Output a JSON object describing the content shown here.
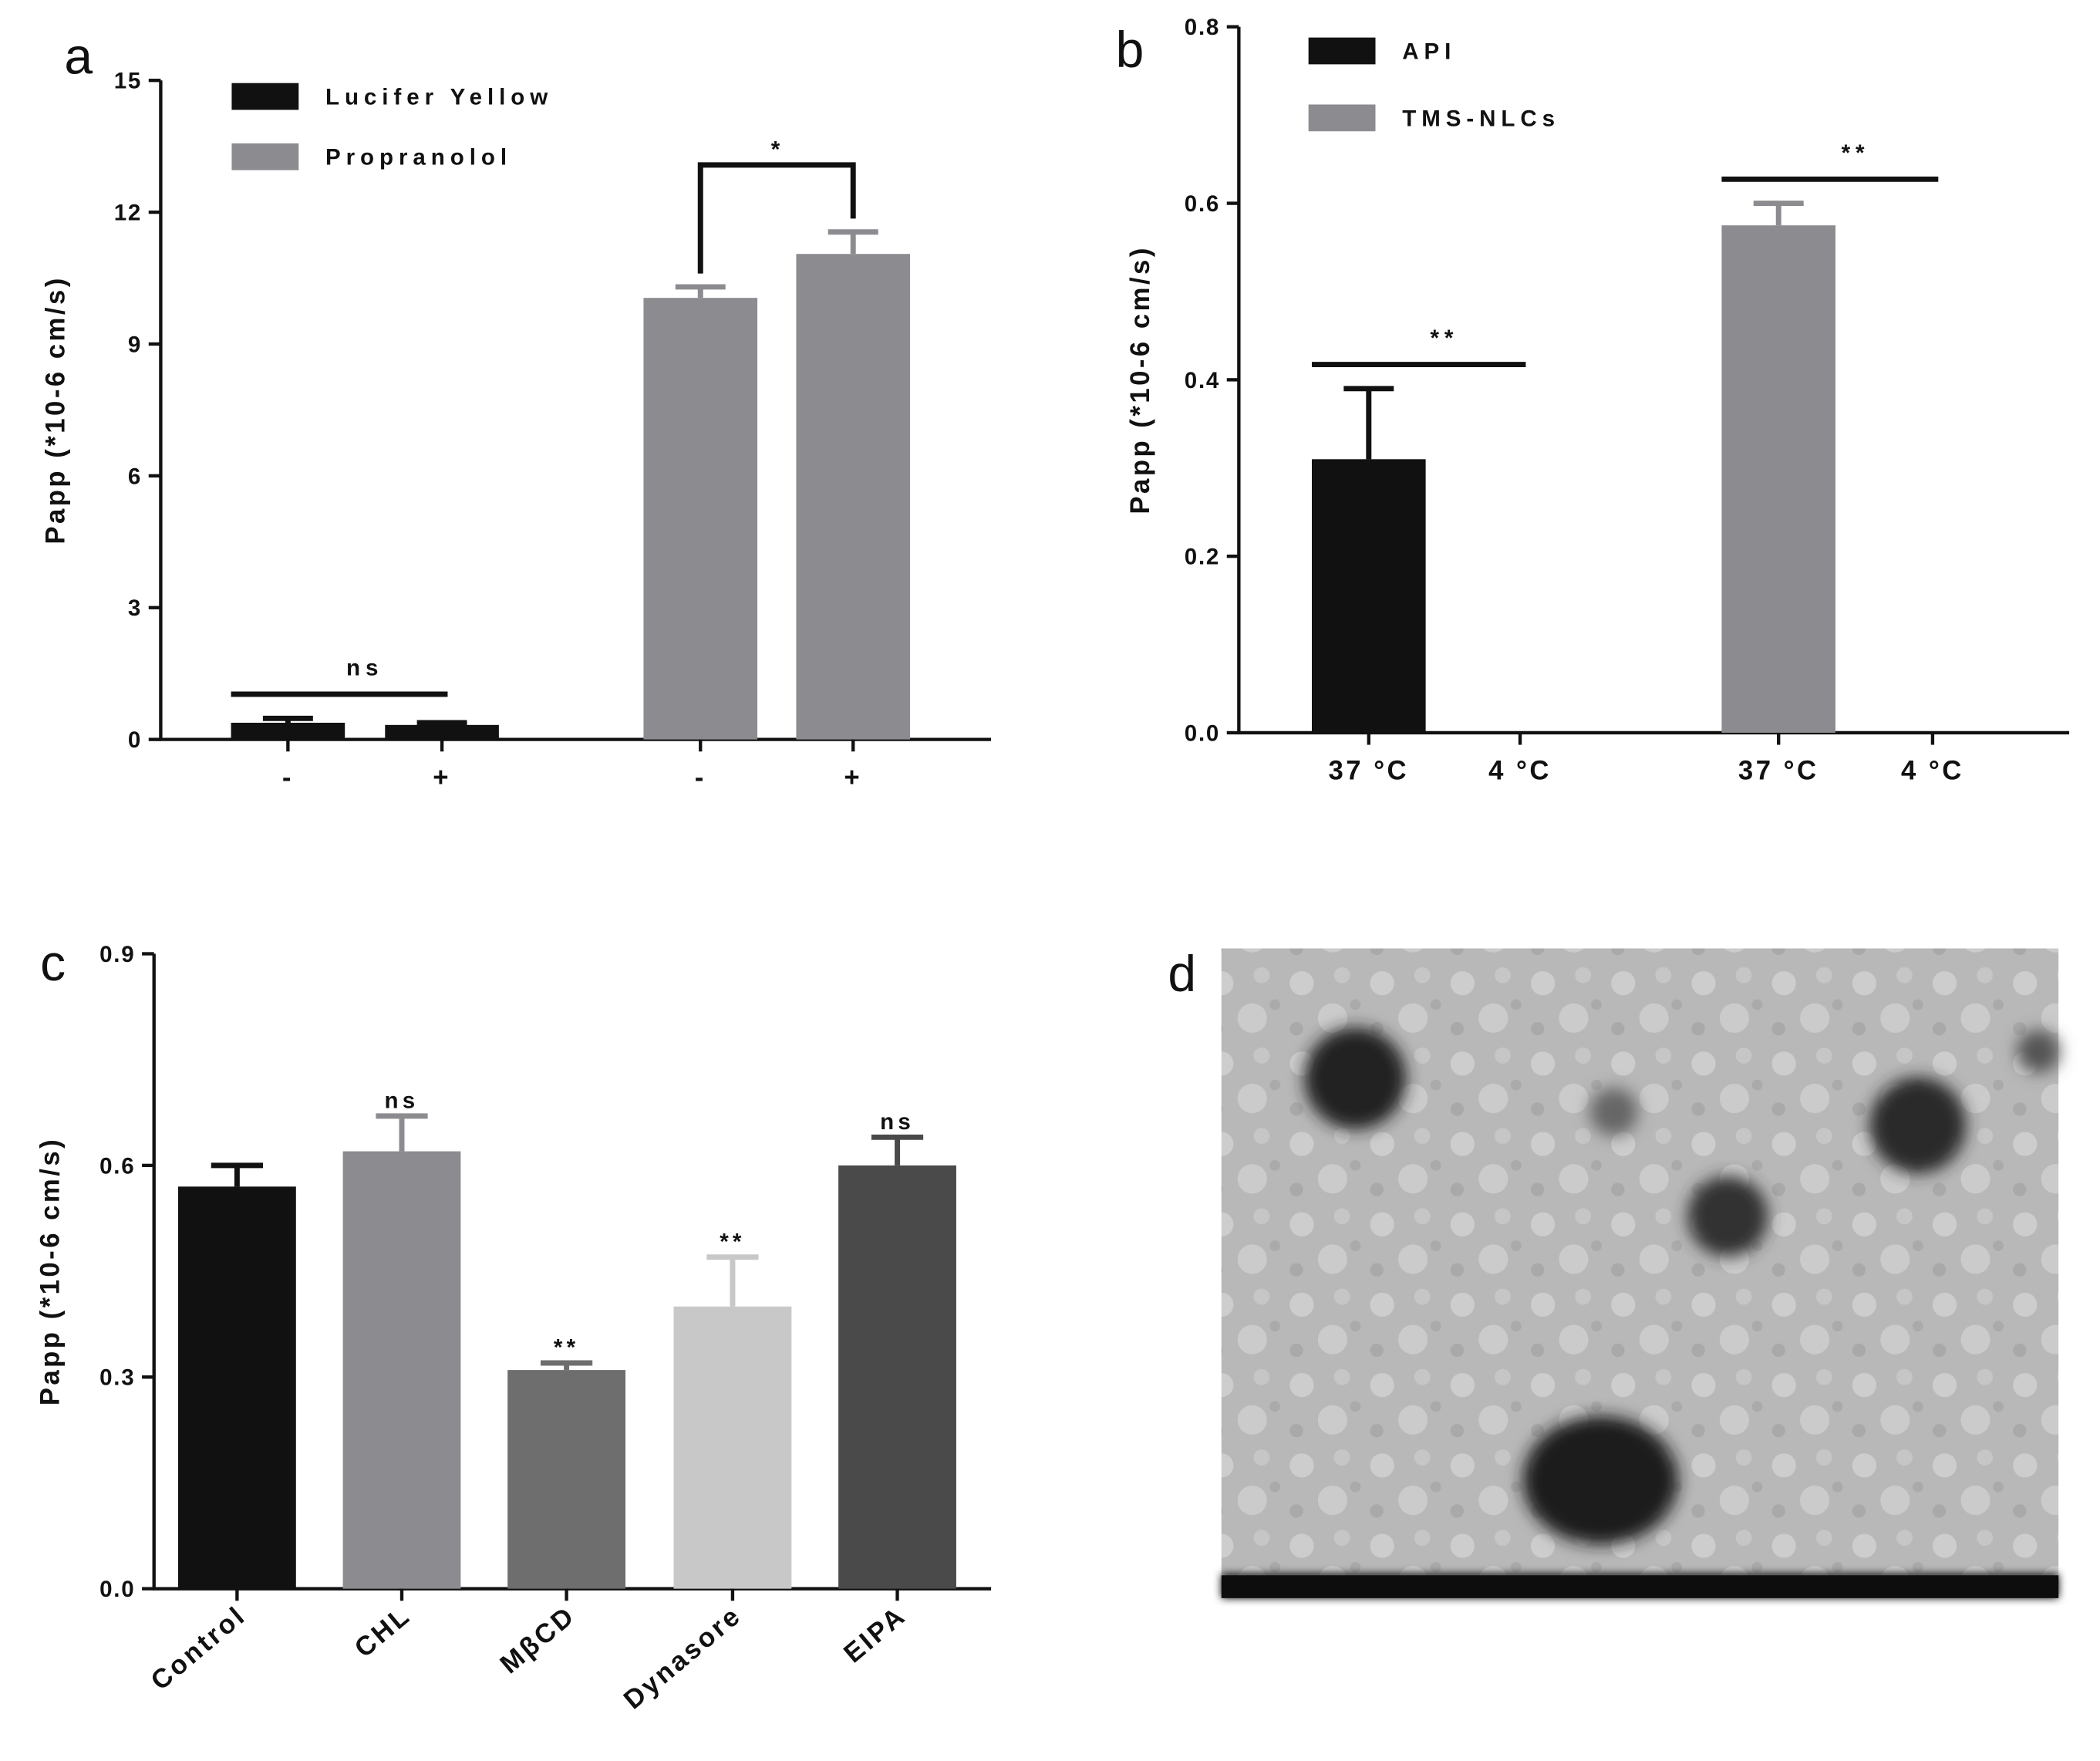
{
  "chart_data": [
    {
      "type": "bar",
      "label": "a",
      "ylabel": "Papp (*10-6 cm/s)",
      "categories": [
        "-",
        "+",
        "-",
        "+"
      ],
      "series": [
        {
          "name": "Lucifer Yellow",
          "color": "#111111",
          "values": [
            0.38,
            0.33,
            null,
            null
          ],
          "errors": [
            0.1,
            0.05,
            null,
            null
          ]
        },
        {
          "name": "Propranolol",
          "color": "#8c8c90",
          "values": [
            null,
            null,
            10.05,
            11.05
          ],
          "errors": [
            null,
            null,
            0.25,
            0.5
          ]
        }
      ],
      "ylim": [
        0,
        15
      ],
      "yticks": [
        0,
        3,
        6,
        9,
        12,
        15
      ],
      "annotations": [
        {
          "text": "ns",
          "between": [
            0,
            1
          ]
        },
        {
          "text": "*",
          "between": [
            2,
            3
          ],
          "bracket": true
        }
      ]
    },
    {
      "type": "bar",
      "label": "b",
      "ylabel": "Papp (*10-6 cm/s)",
      "categories": [
        "37 °C",
        "4 °C",
        "37 °C",
        "4 °C"
      ],
      "series": [
        {
          "name": "API",
          "color": "#111111",
          "values": [
            0.31,
            0,
            null,
            null
          ],
          "errors": [
            0.08,
            null,
            null,
            null
          ]
        },
        {
          "name": "TMS-NLCs",
          "color": "#8c8c90",
          "values": [
            null,
            null,
            0.575,
            0
          ],
          "errors": [
            null,
            null,
            0.025,
            null
          ]
        }
      ],
      "ylim": [
        0,
        0.8
      ],
      "yticks": [
        {
          "value": 0,
          "label": "0.0"
        },
        0.2,
        0.4,
        0.6,
        0.8
      ],
      "annotations": [
        {
          "text": "**",
          "between": [
            0,
            1
          ]
        },
        {
          "text": "**",
          "between": [
            2,
            3
          ]
        }
      ]
    },
    {
      "type": "bar",
      "label": "c",
      "ylabel": "Papp (*10-6 cm/s)",
      "categories": [
        "Control",
        "CHL",
        "MβCD",
        "Dynasore",
        "EIPA"
      ],
      "values": [
        0.57,
        0.62,
        0.31,
        0.4,
        0.6
      ],
      "errors": [
        0.03,
        0.05,
        0.01,
        0.07,
        0.04
      ],
      "colors": [
        "#111111",
        "#8c8c90",
        "#6e6e6e",
        "#c8c8c8",
        "#4a4a4a"
      ],
      "value_labels": [
        null,
        "ns",
        "**",
        "**",
        "ns"
      ],
      "ylim": [
        0,
        0.9
      ],
      "yticks": [
        {
          "value": 0,
          "label": "0.0"
        },
        0.3,
        0.6,
        0.9
      ]
    }
  ],
  "image_panel": {
    "label": "d"
  }
}
